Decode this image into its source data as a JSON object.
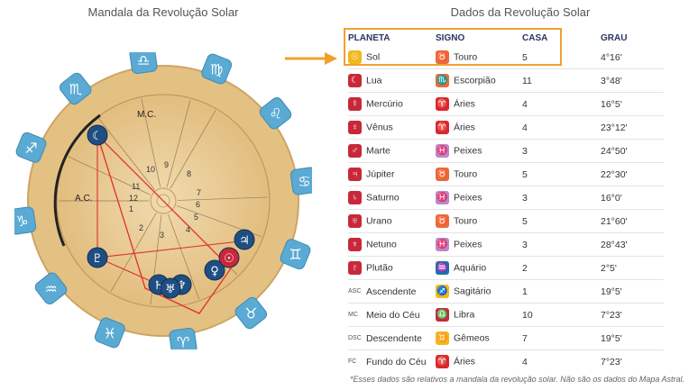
{
  "left_title": "Mandala da Revolução Solar",
  "right_title": "Dados da Revolução Solar",
  "table": {
    "headers": [
      "PLANETA",
      "SIGNO",
      "CASA",
      "GRAU"
    ],
    "rows": [
      {
        "planet": "Sol",
        "p_icon": "sun-icon",
        "p_glyph": "☉",
        "p_color": "#f2b81c",
        "sign": "Touro",
        "s_icon": "taurus-icon",
        "s_glyph": "♉",
        "s_color": "#e86b3c",
        "house": "5",
        "degree": "4°16'"
      },
      {
        "planet": "Lua",
        "p_icon": "moon-icon",
        "p_glyph": "☾",
        "p_color": "#c8283a",
        "sign": "Escorpião",
        "s_icon": "scorpio-icon",
        "s_glyph": "♏",
        "s_color": "#e86b3c",
        "house": "11",
        "degree": "3°48'"
      },
      {
        "planet": "Mercúrio",
        "p_icon": "mercury-icon",
        "p_glyph": "☿",
        "p_color": "#c8283a",
        "sign": "Áries",
        "s_icon": "aries-icon",
        "s_glyph": "♈",
        "s_color": "#d8282e",
        "house": "4",
        "degree": "16°5'"
      },
      {
        "planet": "Vênus",
        "p_icon": "venus-icon",
        "p_glyph": "♀",
        "p_color": "#c8283a",
        "sign": "Áries",
        "s_icon": "aries-icon",
        "s_glyph": "♈",
        "s_color": "#d8282e",
        "house": "4",
        "degree": "23°12'"
      },
      {
        "planet": "Marte",
        "p_icon": "mars-icon",
        "p_glyph": "♂",
        "p_color": "#c8283a",
        "sign": "Peixes",
        "s_icon": "pisces-icon",
        "s_glyph": "♓",
        "s_color": "#b888c8",
        "house": "3",
        "degree": "24°50'"
      },
      {
        "planet": "Júpiter",
        "p_icon": "jupiter-icon",
        "p_glyph": "♃",
        "p_color": "#c8283a",
        "sign": "Touro",
        "s_icon": "taurus-icon",
        "s_glyph": "♉",
        "s_color": "#e86b3c",
        "house": "5",
        "degree": "22°30'"
      },
      {
        "planet": "Saturno",
        "p_icon": "saturn-icon",
        "p_glyph": "♄",
        "p_color": "#c8283a",
        "sign": "Peixes",
        "s_icon": "pisces-icon",
        "s_glyph": "♓",
        "s_color": "#b888c8",
        "house": "3",
        "degree": "16°0'"
      },
      {
        "planet": "Urano",
        "p_icon": "uranus-icon",
        "p_glyph": "♅",
        "p_color": "#c8283a",
        "sign": "Touro",
        "s_icon": "taurus-icon",
        "s_glyph": "♉",
        "s_color": "#e86b3c",
        "house": "5",
        "degree": "21°60'"
      },
      {
        "planet": "Netuno",
        "p_icon": "neptune-icon",
        "p_glyph": "♆",
        "p_color": "#c8283a",
        "sign": "Peixes",
        "s_icon": "pisces-icon",
        "s_glyph": "♓",
        "s_color": "#b888c8",
        "house": "3",
        "degree": "28°43'"
      },
      {
        "planet": "Plutão",
        "p_icon": "pluto-icon",
        "p_glyph": "♇",
        "p_color": "#c8283a",
        "sign": "Aquário",
        "s_icon": "aquarius-icon",
        "s_glyph": "♒",
        "s_color": "#1f6fa8",
        "house": "2",
        "degree": "2°5'"
      },
      {
        "planet": "Ascendente",
        "abbr": "ASC",
        "sign": "Sagitário",
        "s_icon": "sagittarius-icon",
        "s_glyph": "♐",
        "s_color": "#f2b81c",
        "house": "1",
        "degree": "19°5'"
      },
      {
        "planet": "Meio do Céu",
        "abbr": "MC",
        "sign": "Libra",
        "s_icon": "libra-icon",
        "s_glyph": "♎",
        "s_color": "#c8283a",
        "house": "10",
        "degree": "7°23'"
      },
      {
        "planet": "Descendente",
        "abbr": "DSC",
        "sign": "Gêmeos",
        "s_icon": "gemini-icon",
        "s_glyph": "♊",
        "s_color": "#f2b81c",
        "house": "7",
        "degree": "19°5'"
      },
      {
        "planet": "Fundo do Céu",
        "abbr": "FC",
        "sign": "Áries",
        "s_icon": "aries-icon",
        "s_glyph": "♈",
        "s_color": "#d8282e",
        "house": "4",
        "degree": "7°23'"
      }
    ]
  },
  "note": "*Esses dados são relativos a mandala da revolução solar. Não são os dados do Mapa Astral.",
  "mandala": {
    "mc_label": "M.C.",
    "ac_label": "A.C.",
    "house_numbers": [
      "1",
      "2",
      "3",
      "4",
      "5",
      "6",
      "7",
      "8",
      "9",
      "10",
      "11",
      "12"
    ],
    "zodiac_glyphs": [
      "♈",
      "♉",
      "♊",
      "♋",
      "♌",
      "♍",
      "♎",
      "♏",
      "♐",
      "♑",
      "♒",
      "♓"
    ],
    "planet_glyphs": [
      "☾",
      "♃",
      "♀",
      "☉",
      "♆",
      "♄",
      "♅",
      "♇"
    ],
    "colors": {
      "wood_outer": "#e7c68a",
      "wood_inner": "#edd3a2",
      "tile_blue": "#5aaad4",
      "planet_dark": "#1f4f82",
      "aspect_red": "#e0302a"
    }
  }
}
